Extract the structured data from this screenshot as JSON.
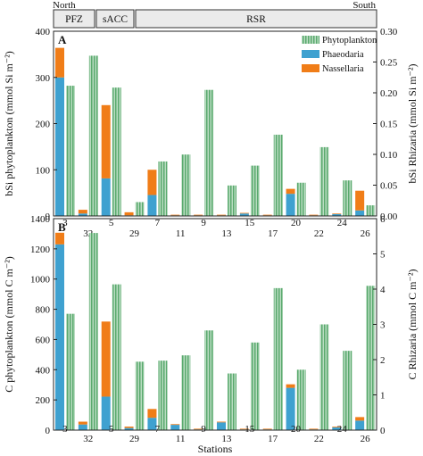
{
  "header": {
    "left": "North",
    "right": "South",
    "regions": [
      {
        "id": "pfz",
        "label": "PFZ"
      },
      {
        "id": "sacc",
        "label": "sACC"
      },
      {
        "id": "rsr",
        "label": "RSR"
      }
    ]
  },
  "xlabel": "Stations",
  "stations": [
    "3",
    "32",
    "5",
    "29",
    "7",
    "11",
    "9",
    "13",
    "15",
    "17",
    "20",
    "22",
    "24",
    "26"
  ],
  "legend": [
    "Phytoplankton",
    "Phaeodaria",
    "Nassellaria"
  ],
  "colors": {
    "phytoplankton": "#5aaa6e",
    "phytoplankton_stripe": "#b9dcc1",
    "phaeodaria": "#3fa1d0",
    "nassellaria": "#f07d18"
  },
  "chart_data": [
    {
      "type": "bar",
      "panel": "A",
      "categories": [
        "3",
        "32",
        "5",
        "29",
        "7",
        "11",
        "9",
        "13",
        "15",
        "17",
        "20",
        "22",
        "24",
        "26"
      ],
      "ylabel_left": "bSi phytoplankton (mmol Si m⁻²)",
      "ylabel_right": "bSi Rhizaria (mmol Si m⁻²)",
      "ylim_left": [
        0,
        400
      ],
      "ylim_right": [
        0,
        0.3
      ],
      "yticks_left": [
        "0",
        "100",
        "200",
        "300",
        "400"
      ],
      "yticks_right": [
        "0.00",
        "0.05",
        "0.10",
        "0.15",
        "0.20",
        "0.25",
        "0.30"
      ],
      "series": [
        {
          "name": "Phytoplankton",
          "axis": "left",
          "values": [
            282,
            347,
            278,
            30,
            118,
            133,
            273,
            66,
            109,
            176,
            72,
            149,
            77,
            23
          ]
        },
        {
          "name": "Phaeodaria",
          "axis": "right",
          "values": [
            0.225,
            0.004,
            0.061,
            0.001,
            0.034,
            0.001,
            0.001,
            0.001,
            0.004,
            0.001,
            0.036,
            0.001,
            0.003,
            0.009
          ]
        },
        {
          "name": "Nassellaria",
          "axis": "right",
          "values": [
            0.048,
            0.006,
            0.119,
            0.005,
            0.041,
            0.001,
            0.001,
            0.001,
            0.001,
            0.001,
            0.008,
            0.001,
            0.001,
            0.032
          ]
        }
      ]
    },
    {
      "type": "bar",
      "panel": "B",
      "categories": [
        "3",
        "32",
        "5",
        "29",
        "7",
        "11",
        "9",
        "13",
        "15",
        "17",
        "20",
        "22",
        "24",
        "26"
      ],
      "ylabel_left": "C phytoplankton (mmol C m⁻²)",
      "ylabel_right": "C Rhizaria (mmol C m⁻²)",
      "ylim_left": [
        0,
        1400
      ],
      "ylim_right": [
        0,
        6
      ],
      "yticks_left": [
        "0",
        "200",
        "400",
        "600",
        "800",
        "1000",
        "1200",
        "1400"
      ],
      "yticks_right": [
        "0",
        "1",
        "2",
        "3",
        "4",
        "5",
        "6"
      ],
      "series": [
        {
          "name": "Phytoplankton",
          "axis": "left",
          "values": [
            770,
            1305,
            965,
            453,
            460,
            495,
            660,
            375,
            580,
            940,
            400,
            700,
            525,
            955
          ]
        },
        {
          "name": "Phaeodaria",
          "axis": "right",
          "values": [
            5.27,
            0.16,
            0.95,
            0.06,
            0.35,
            0.15,
            0.02,
            0.22,
            0.02,
            0.02,
            1.2,
            0.02,
            0.08,
            0.27
          ]
        },
        {
          "name": "Nassellaria",
          "axis": "right",
          "values": [
            0.33,
            0.08,
            2.13,
            0.04,
            0.25,
            0.02,
            0.02,
            0.02,
            0.02,
            0.02,
            0.1,
            0.02,
            0.02,
            0.1
          ]
        }
      ]
    }
  ]
}
